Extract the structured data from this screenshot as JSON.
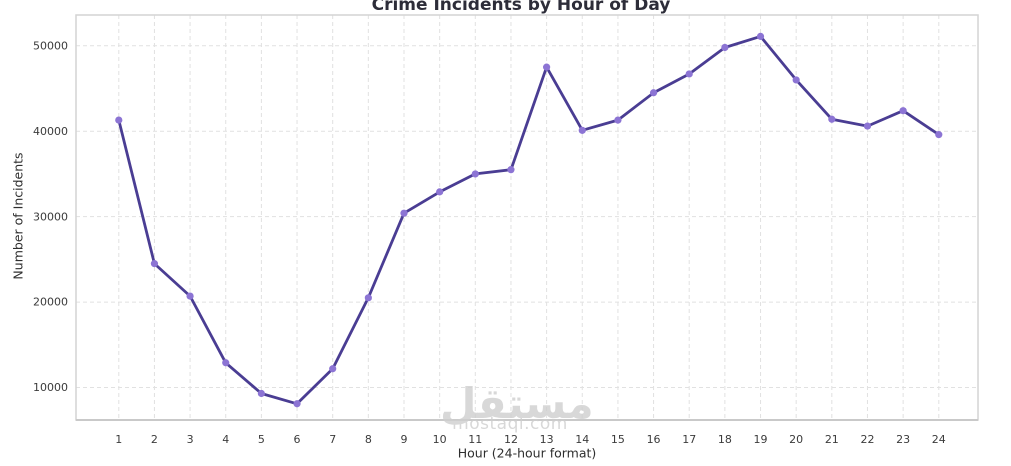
{
  "chart_data": {
    "type": "line",
    "title": "Crime Incidents by Hour of Day",
    "xlabel": "Hour (24-hour format)",
    "ylabel": "Number of Incidents",
    "x": [
      1,
      2,
      3,
      4,
      5,
      6,
      7,
      8,
      9,
      10,
      11,
      12,
      13,
      14,
      15,
      16,
      17,
      18,
      19,
      20,
      21,
      22,
      23,
      24
    ],
    "values": [
      41300,
      24500,
      20700,
      12900,
      9300,
      8100,
      12200,
      20500,
      30400,
      32900,
      35000,
      35500,
      47500,
      40100,
      41300,
      44500,
      46700,
      49800,
      51100,
      46000,
      41400,
      40600,
      42400,
      39600
    ],
    "yticks": [
      10000,
      20000,
      30000,
      40000,
      50000
    ],
    "ylim": [
      6200,
      53600
    ],
    "xlim": [
      -0.2,
      25.1
    ],
    "grid": "dashed-both",
    "legend": "none",
    "colors": {
      "line": "#4a3d93",
      "marker": "#8c74d4",
      "grid": "#e1e1e1",
      "border": "#d4d4d4",
      "title": "#2d2d39",
      "tick": "#3b3b3b",
      "watermark": "#cfcfcf"
    }
  },
  "watermark": {
    "arabic": "مستقل",
    "domain": "mostaql.com"
  }
}
